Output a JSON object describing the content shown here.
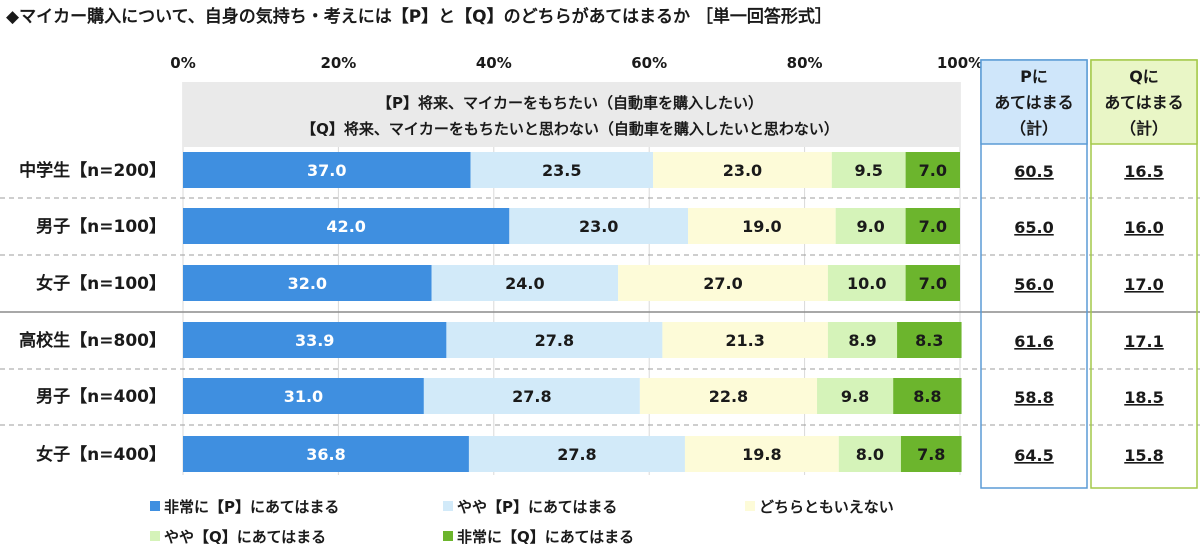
{
  "title": "◆マイカー購入について、自身の気持ち・考えには【P】と【Q】のどちらがあてはまるか ［単一回答形式］",
  "chart_data": {
    "type": "bar",
    "orientation": "horizontal",
    "stacked": true,
    "xlim": [
      0,
      100
    ],
    "x_ticks": [
      "0%",
      "20%",
      "40%",
      "60%",
      "80%",
      "100%"
    ],
    "categories": [
      "中学生【n=200】",
      "男子【n=100】",
      "女子【n=100】",
      "高校生【n=800】",
      "男子【n=400】",
      "女子【n=400】"
    ],
    "series": [
      {
        "name": "非常に【P】にあてはまる",
        "color": "#3f8fe0",
        "label_color": "#ffffff",
        "values": [
          37.0,
          42.0,
          32.0,
          33.9,
          31.0,
          36.8
        ]
      },
      {
        "name": "やや【P】にあてはまる",
        "color": "#d2eaf9",
        "label_color": "#1a1a1a",
        "values": [
          23.5,
          23.0,
          24.0,
          27.8,
          27.8,
          27.8
        ]
      },
      {
        "name": "どちらともいえない",
        "color": "#fdfbd8",
        "label_color": "#1a1a1a",
        "values": [
          23.0,
          19.0,
          27.0,
          21.3,
          22.8,
          19.8
        ]
      },
      {
        "name": "やや【Q】にあてはまる",
        "color": "#d5f3b9",
        "label_color": "#1a1a1a",
        "values": [
          9.5,
          9.0,
          10.0,
          8.9,
          9.8,
          8.0
        ]
      },
      {
        "name": "非常に【Q】にあてはまる",
        "color": "#6cb52d",
        "label_color": "#1a1a1a",
        "values": [
          7.0,
          7.0,
          7.0,
          8.3,
          8.8,
          7.8
        ]
      }
    ],
    "header_note": [
      "【P】将来、マイカーをもちたい（自動車を購入したい）",
      "【Q】将来、マイカーをもちたいと思わない（自動車を購入したいと思わない）"
    ],
    "summary": [
      {
        "header": [
          "Pに",
          "あてはまる",
          "（計）"
        ],
        "border": "#5b9bd5",
        "fill": "#cfe6fa",
        "values": [
          "60.5",
          "65.0",
          "56.0",
          "61.6",
          "58.8",
          "64.5"
        ]
      },
      {
        "header": [
          "Qに",
          "あてはまる",
          "（計）"
        ],
        "border": "#a4c94a",
        "fill": "#e9f6c6",
        "values": [
          "16.5",
          "16.0",
          "17.0",
          "17.1",
          "18.5",
          "15.8"
        ]
      }
    ],
    "legend_position": "bottom"
  }
}
